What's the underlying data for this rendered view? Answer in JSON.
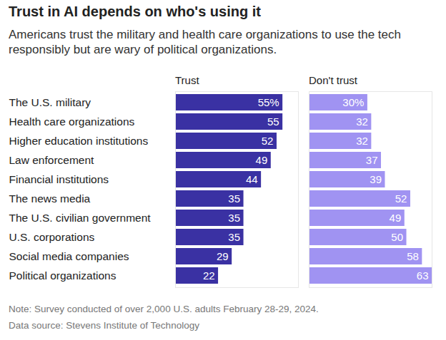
{
  "chart_data": {
    "type": "bar",
    "title": "Trust in AI depends on who's using it",
    "subtitle": "Americans trust the military and health care organizations to use the tech responsibly but are wary of political organizations.",
    "note": "Note: Survey conducted of over 2,000 U.S. adults February 28-29, 2024.",
    "source": "Data source: Stevens Institute of Technology",
    "orientation": "horizontal",
    "data_labels": true,
    "tick_labels": "y",
    "grid": false,
    "categories": [
      "The U.S. military",
      "Health care organizations",
      "Higher education institutions",
      "Law enforcement",
      "Financial institutions",
      "The news media",
      "The U.S. civilian government",
      "U.S. corporations",
      "Social media companies",
      "Political organizations"
    ],
    "xlim": [
      0,
      63
    ],
    "xticks": [],
    "series": [
      {
        "name": "Trust",
        "color": "#3a31a3",
        "values": [
          55,
          55,
          52,
          49,
          44,
          35,
          35,
          35,
          29,
          22
        ],
        "value_labels": [
          "55%",
          "55",
          "52",
          "49",
          "44",
          "35",
          "35",
          "35",
          "29",
          "22"
        ]
      },
      {
        "name": "Don't trust",
        "color": "#a093f2",
        "values": [
          30,
          32,
          32,
          37,
          39,
          52,
          49,
          50,
          58,
          63
        ],
        "value_labels": [
          "30%",
          "32",
          "32",
          "37",
          "39",
          "52",
          "49",
          "50",
          "58",
          "63"
        ]
      }
    ]
  }
}
